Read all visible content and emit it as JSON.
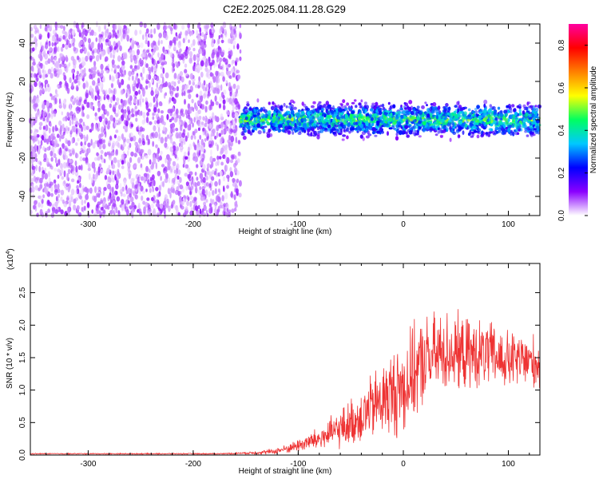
{
  "title": "C2E2.2025.084.11.28.G29",
  "chart_data": [
    {
      "type": "heatmap",
      "xlabel": "Height of straight line (km)",
      "ylabel": "Frequency (Hz)",
      "xlim": [
        -355,
        130
      ],
      "ylim": [
        -50,
        50
      ],
      "xticks": [
        -300,
        -200,
        -100,
        0,
        100
      ],
      "xtick_labels": [
        "-300",
        "-200",
        "-100",
        "0",
        "100"
      ],
      "yticks": [
        -40,
        -20,
        0,
        20,
        40
      ],
      "ytick_labels": [
        "-40",
        "-20",
        "0",
        "20",
        "40"
      ],
      "colorbar": {
        "label": "Normalized spectral amplitude",
        "range": [
          0,
          0.9
        ],
        "ticks": [
          0.0,
          0.2,
          0.4,
          0.6,
          0.8
        ],
        "tick_labels": [
          "0.0",
          "0.2",
          "0.4",
          "0.6",
          "0.8"
        ],
        "colormap": [
          "#ffffff",
          "#8a00ff",
          "#0000ff",
          "#00c8ff",
          "#00ff60",
          "#ffff00",
          "#ff8000",
          "#ff0000",
          "#ff00a0"
        ]
      },
      "regions": [
        {
          "x": [
            -355,
            -155
          ],
          "freq": [
            -50,
            50
          ],
          "amplitude": 0.1,
          "pattern": "broadband noise"
        },
        {
          "x": [
            -155,
            130
          ],
          "freq_center": 0,
          "freq_halfwidth": 8,
          "amplitude": 0.35,
          "pattern": "narrow band near 0 Hz"
        }
      ]
    },
    {
      "type": "line",
      "xlabel": "Height of straight line (km)",
      "ylabel": "SNR (10 * v/v)",
      "yscale_label": "(x10",
      "yscale_exp": "4",
      "yscale_close": ")",
      "xlim": [
        -355,
        130
      ],
      "ylim": [
        0,
        2.95
      ],
      "xticks": [
        -300,
        -200,
        -100,
        0,
        100
      ],
      "xtick_labels": [
        "-300",
        "-200",
        "-100",
        "0",
        "100"
      ],
      "yticks": [
        0.0,
        0.5,
        1.0,
        1.5,
        2.0,
        2.5
      ],
      "ytick_labels": [
        "0.0",
        "0.5",
        "1.0",
        "1.5",
        "2.0",
        "2.5"
      ],
      "series": [
        {
          "color": "#ee3333",
          "x": [
            -355,
            -300,
            -250,
            -200,
            -175,
            -150,
            -125,
            -110,
            -100,
            -80,
            -60,
            -40,
            -20,
            0,
            20,
            40,
            60,
            80,
            100,
            120,
            130
          ],
          "y": [
            0.02,
            0.02,
            0.02,
            0.02,
            0.02,
            0.03,
            0.05,
            0.1,
            0.15,
            0.25,
            0.4,
            0.6,
            0.85,
            1.05,
            1.45,
            1.6,
            1.55,
            1.55,
            1.45,
            1.45,
            1.4
          ],
          "spread": [
            0.01,
            0.01,
            0.01,
            0.01,
            0.01,
            0.02,
            0.05,
            0.08,
            0.12,
            0.22,
            0.35,
            0.5,
            0.7,
            0.9,
            0.8,
            0.75,
            0.65,
            0.6,
            0.55,
            0.5,
            0.5
          ]
        }
      ]
    }
  ]
}
